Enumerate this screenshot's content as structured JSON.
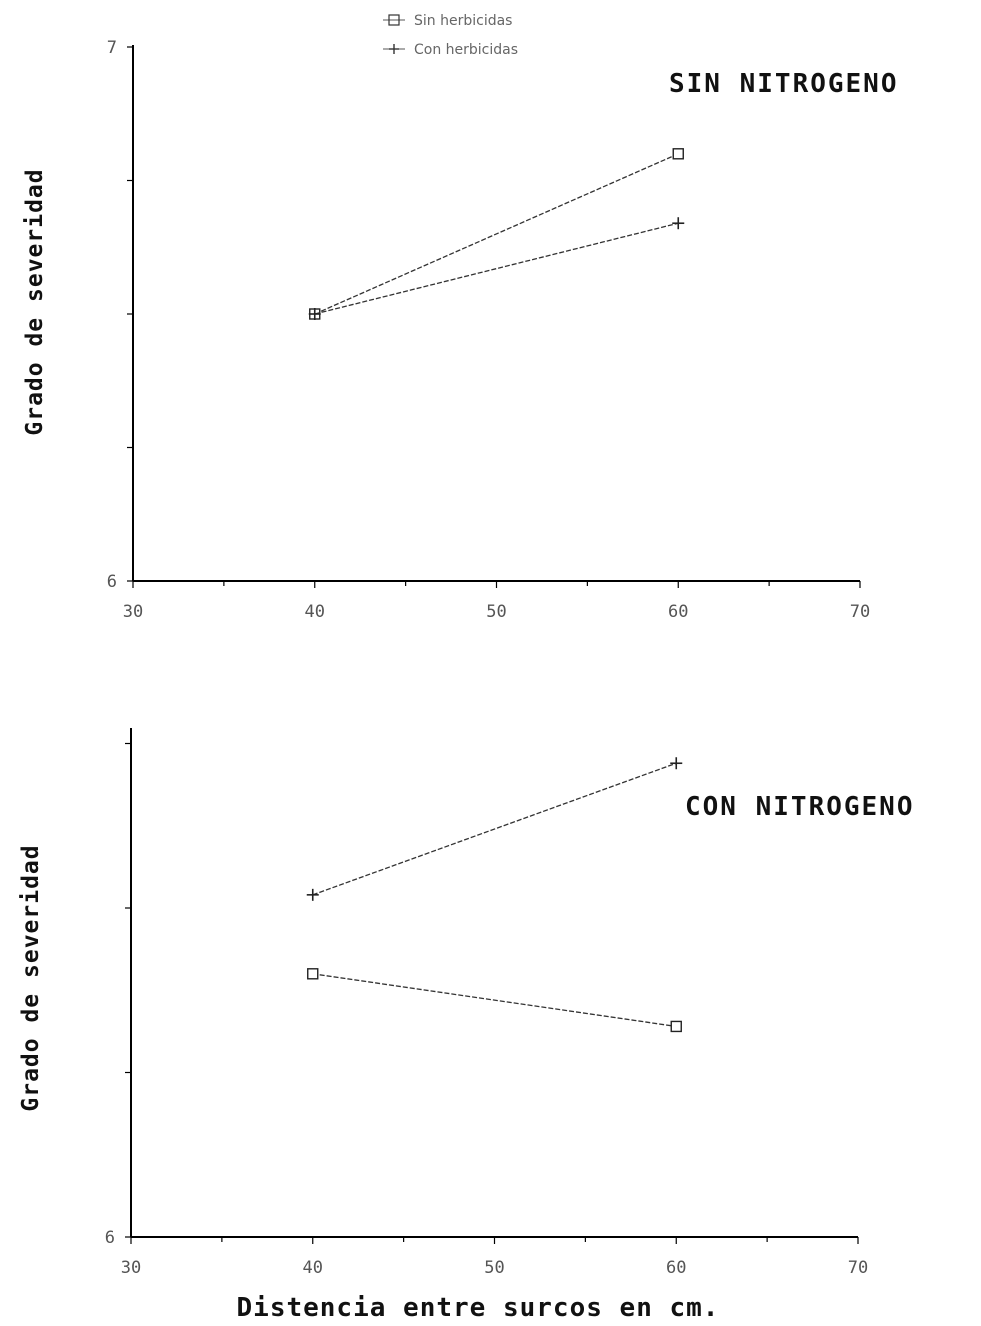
{
  "chart_data": [
    {
      "type": "line",
      "title": "SIN NITROGENO",
      "xlabel": "",
      "ylabel": "Grado de severidad",
      "x": [
        40,
        60
      ],
      "xlim": [
        30,
        70
      ],
      "ylim": [
        6,
        7
      ],
      "xticks": [
        "30",
        "40",
        "50",
        "60",
        "70"
      ],
      "yticks": [
        "6",
        "7"
      ],
      "series": [
        {
          "name": "Sin herbicidas",
          "marker": "square",
          "values": [
            6.5,
            6.8
          ]
        },
        {
          "name": "Con herbicidas",
          "marker": "plus",
          "values": [
            6.5,
            6.67
          ]
        }
      ],
      "grid": false,
      "legend": "top-center"
    },
    {
      "type": "line",
      "title": "CON NITROGENO",
      "xlabel": "Distencia entre surcos en cm.",
      "ylabel": "Grado de severidad",
      "x": [
        40,
        60
      ],
      "xlim": [
        30,
        70
      ],
      "ylim": [
        6,
        7
      ],
      "xticks": [
        "30",
        "40",
        "50",
        "60",
        "70"
      ],
      "yticks": [
        "6"
      ],
      "series": [
        {
          "name": "Sin herbicidas",
          "marker": "square",
          "values": [
            6.4,
            6.32
          ]
        },
        {
          "name": "Con herbicidas",
          "marker": "plus",
          "values": [
            6.52,
            6.72
          ]
        }
      ],
      "grid": false
    }
  ],
  "colors": {
    "line": "#333333",
    "axis": "#000000"
  }
}
